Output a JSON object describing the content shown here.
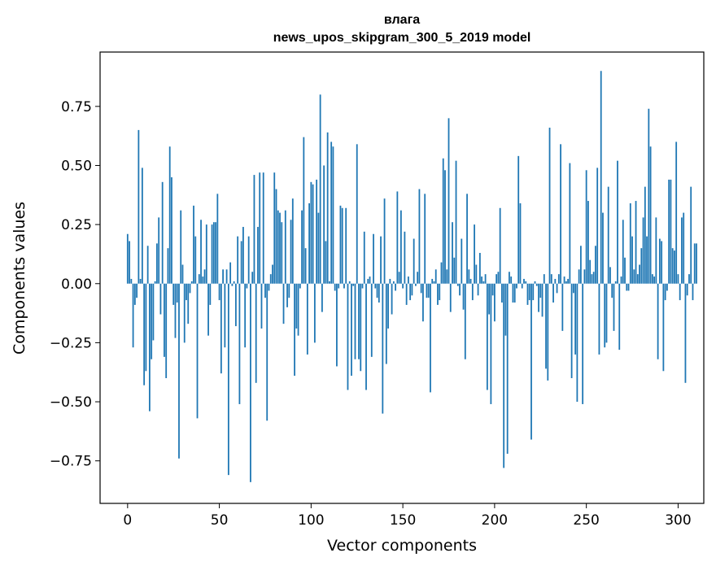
{
  "chart_data": {
    "type": "bar",
    "title": "влага",
    "subtitle": "news_upos_skipgram_300_5_2019 model",
    "xlabel": "Vector components",
    "ylabel": "Components values",
    "xlim": [
      -15,
      314
    ],
    "ylim": [
      -0.93,
      0.98
    ],
    "xticks": [
      0,
      50,
      100,
      150,
      200,
      250,
      300
    ],
    "xtick_labels": [
      "0",
      "50",
      "100",
      "150",
      "200",
      "250",
      "300"
    ],
    "yticks": [
      -0.75,
      -0.5,
      -0.25,
      0.0,
      0.25,
      0.5,
      0.75
    ],
    "ytick_labels": [
      "−0.75",
      "−0.50",
      "−0.25",
      "0.00",
      "0.25",
      "0.50",
      "0.75"
    ],
    "bar_color": "#1f77b4",
    "grid": false,
    "values": [
      0.21,
      0.18,
      0.02,
      -0.27,
      -0.09,
      -0.06,
      0.65,
      0.02,
      0.49,
      -0.43,
      -0.37,
      0.16,
      -0.54,
      -0.32,
      -0.24,
      0.01,
      0.17,
      0.28,
      -0.13,
      0.43,
      -0.31,
      -0.4,
      0.15,
      0.58,
      0.45,
      -0.09,
      -0.23,
      -0.08,
      -0.74,
      0.31,
      0.08,
      -0.25,
      -0.07,
      -0.17,
      -0.04,
      0.01,
      0.33,
      0.2,
      -0.57,
      0.04,
      0.27,
      0.03,
      0.06,
      0.25,
      -0.22,
      -0.09,
      0.25,
      0.26,
      0.26,
      0.38,
      -0.07,
      -0.38,
      0.06,
      -0.27,
      0.06,
      -0.81,
      0.09,
      -0.01,
      0.01,
      -0.18,
      0.2,
      -0.51,
      0.18,
      0.24,
      -0.27,
      -0.02,
      0.2,
      -0.84,
      0.05,
      0.46,
      -0.42,
      0.24,
      0.47,
      -0.19,
      0.47,
      -0.06,
      -0.58,
      -0.03,
      0.04,
      0.08,
      0.47,
      0.4,
      0.31,
      0.3,
      0.26,
      -0.17,
      0.31,
      -0.1,
      -0.06,
      0.27,
      0.36,
      -0.39,
      -0.19,
      -0.22,
      -0.02,
      0.31,
      0.62,
      0.15,
      -0.3,
      0.34,
      0.43,
      0.42,
      -0.25,
      0.44,
      0.3,
      0.8,
      -0.12,
      0.5,
      0.18,
      0.64,
      0.01,
      0.6,
      0.58,
      -0.03,
      -0.35,
      -0.02,
      0.33,
      0.32,
      -0.02,
      0.32,
      -0.45,
      0.01,
      -0.39,
      -0.01,
      -0.32,
      0.59,
      -0.32,
      -0.37,
      -0.02,
      0.22,
      -0.45,
      0.02,
      0.03,
      -0.31,
      0.21,
      -0.02,
      -0.06,
      -0.08,
      0.2,
      -0.55,
      0.36,
      -0.34,
      -0.19,
      0.02,
      -0.13,
      0.01,
      -0.03,
      0.39,
      0.05,
      0.31,
      -0.02,
      0.22,
      -0.09,
      0.03,
      -0.07,
      -0.05,
      0.19,
      -0.01,
      0.05,
      0.4,
      -0.04,
      -0.16,
      0.38,
      -0.06,
      -0.06,
      -0.46,
      0.02,
      0.01,
      0.06,
      -0.09,
      -0.07,
      0.09,
      0.53,
      0.48,
      0.06,
      0.7,
      -0.12,
      0.26,
      0.11,
      0.52,
      -0.01,
      -0.05,
      0.19,
      -0.11,
      -0.32,
      0.38,
      0.06,
      0.02,
      -0.07,
      0.25,
      0.08,
      -0.05,
      0.13,
      0.03,
      0.01,
      0.04,
      -0.45,
      -0.13,
      -0.51,
      -0.05,
      -0.16,
      0.04,
      0.05,
      0.32,
      -0.08,
      -0.78,
      -0.22,
      -0.72,
      0.05,
      0.03,
      -0.08,
      -0.08,
      -0.02,
      0.54,
      0.34,
      -0.02,
      0.02,
      0.01,
      -0.09,
      -0.07,
      -0.66,
      -0.07,
      0.01,
      -0.01,
      -0.12,
      -0.06,
      -0.14,
      0.04,
      -0.36,
      -0.41,
      0.66,
      0.04,
      -0.08,
      0.02,
      -0.04,
      0.04,
      0.59,
      -0.2,
      0.03,
      0.01,
      0.02,
      0.51,
      -0.4,
      -0.04,
      -0.3,
      -0.5,
      0.06,
      0.16,
      -0.51,
      0.06,
      0.48,
      0.35,
      0.1,
      0.04,
      0.05,
      0.16,
      0.49,
      -0.3,
      0.9,
      0.3,
      -0.27,
      -0.25,
      0.41,
      0.07,
      -0.06,
      -0.2,
      0.01,
      0.52,
      -0.28,
      0.03,
      0.27,
      0.11,
      -0.03,
      -0.03,
      0.34,
      0.2,
      0.06,
      0.35,
      0.04,
      0.08,
      0.15,
      0.28,
      0.41,
      0.2,
      0.74,
      0.58,
      0.04,
      0.03,
      0.28,
      -0.32,
      0.19,
      0.18,
      -0.37,
      -0.07,
      -0.03,
      0.44,
      0.44,
      0.15,
      0.14,
      0.6,
      0.04,
      -0.07,
      0.28,
      0.3,
      -0.42,
      -0.05,
      0.04,
      0.41,
      -0.07,
      0.17,
      0.17
    ]
  }
}
